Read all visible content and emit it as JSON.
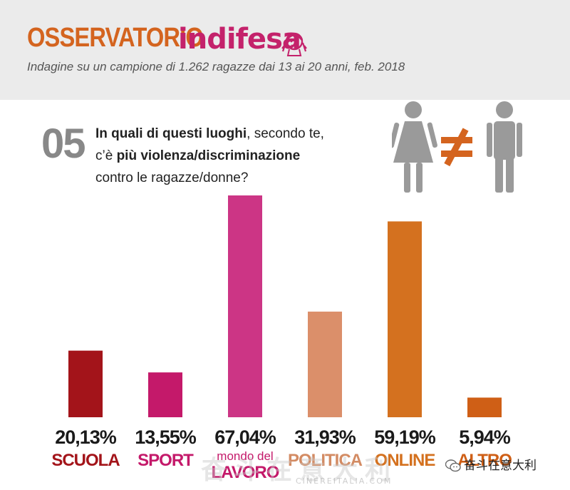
{
  "header": {
    "brand_part1": "OSSERVATORIO",
    "brand_part2": "indifesa",
    "subtitle": "Indagine su un campione di 1.262 ragazze dai 13 ai 20 anni, feb. 2018"
  },
  "question": {
    "number": "05",
    "line1_bold": "In quali di questi luoghi",
    "line1_rest": ", secondo te,",
    "line2_pre": "c’è ",
    "line2_bold": "più violenza/discriminazione",
    "line3": "contro le ragazze/donne?"
  },
  "icons": {
    "female": "woman-icon",
    "not_equal": "not-equal-icon",
    "male": "man-icon"
  },
  "colors": {
    "header_bg": "#ebebeb",
    "brand_orange": "#d4641f",
    "brand_pink": "#c4226b",
    "icon_gray": "#9a9a9a"
  },
  "chart_data": {
    "type": "bar",
    "categories": [
      "SCUOLA",
      "SPORT",
      "mondo del LAVORO",
      "POLITICA",
      "ONLINE",
      "ALTRO"
    ],
    "category_lines": [
      [
        "SCUOLA"
      ],
      [
        "SPORT"
      ],
      [
        "mondo del",
        "LAVORO"
      ],
      [
        "POLITICA"
      ],
      [
        "ONLINE"
      ],
      [
        "ALTRO"
      ]
    ],
    "values": [
      20.13,
      13.55,
      67.04,
      31.93,
      59.19,
      5.94
    ],
    "value_labels": [
      "20,13%",
      "13,55%",
      "67,04%",
      "31,93%",
      "59,19%",
      "5,94%"
    ],
    "colors": [
      "#a3141a",
      "#c4196a",
      "#cc3585",
      "#db8f6a",
      "#d4711f",
      "#cf5f16"
    ],
    "label_colors": [
      "#a3141a",
      "#c4196a",
      "#c4196a",
      "#d38b63",
      "#d4711f",
      "#cf5f16"
    ],
    "ylim": [
      0,
      67.04
    ],
    "grid": false,
    "legend": "none"
  },
  "watermark": {
    "left_text": "奋斗在意大利",
    "left_sub": "CINEREITALIA.COM",
    "right_text": "奋斗在意大利",
    "right_icon": "wechat-icon"
  }
}
